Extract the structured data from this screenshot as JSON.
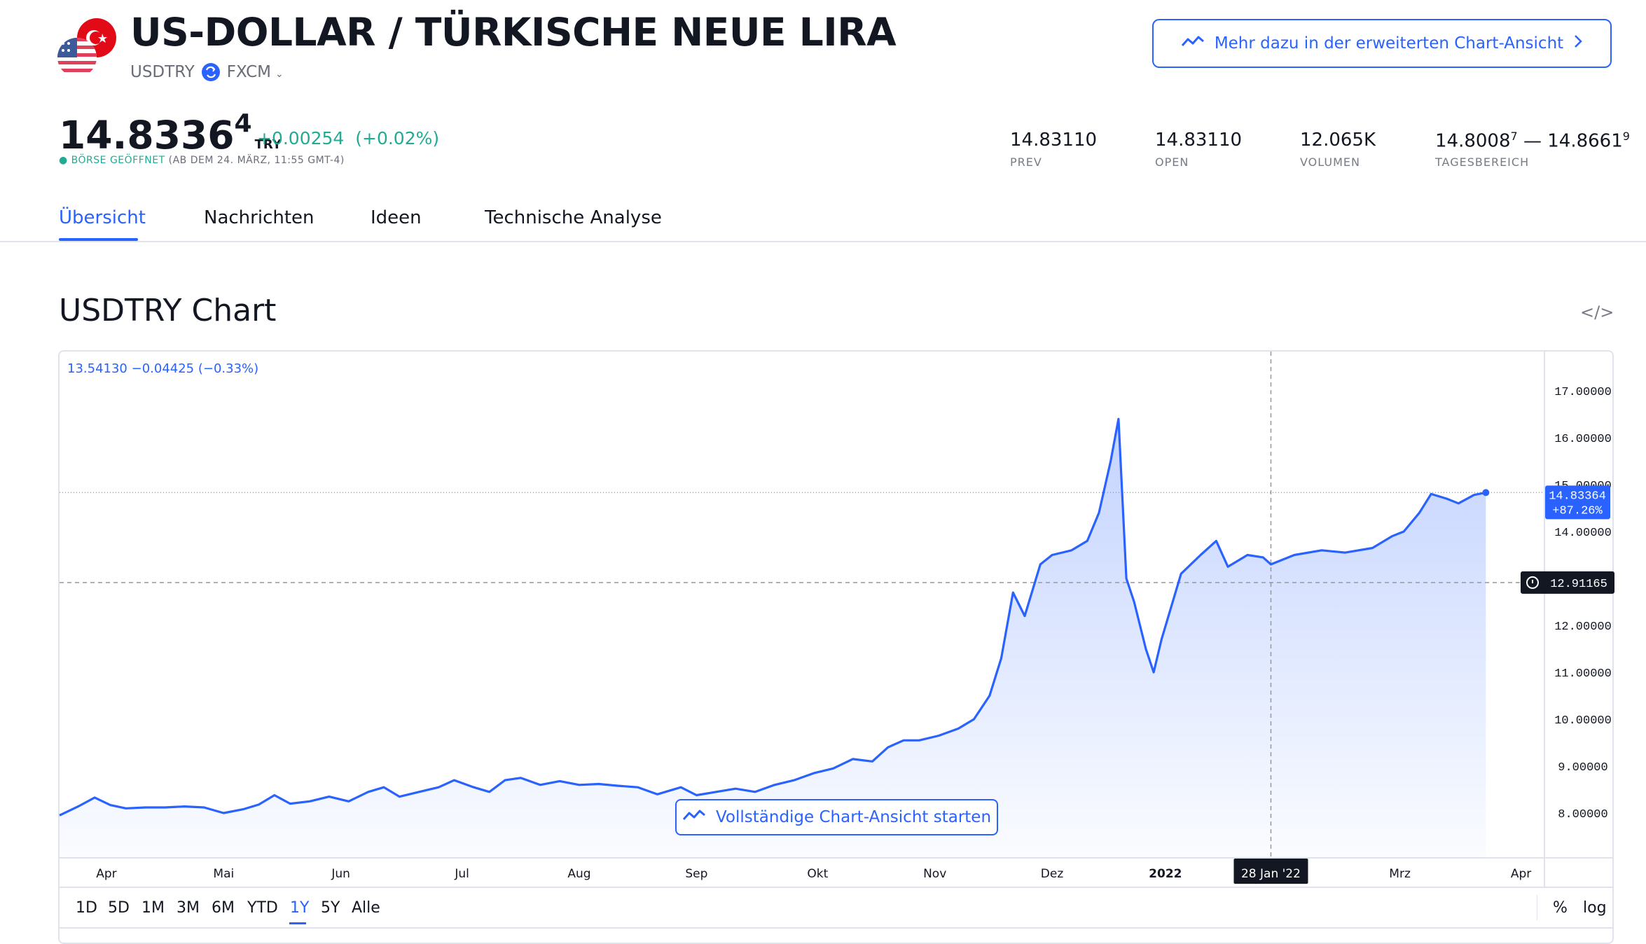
{
  "header": {
    "title": "US-DOLLAR / TÜRKISCHE NEUE LIRA",
    "symbol": "USDTRY",
    "exchange": "FXCM",
    "advanced_button": "Mehr dazu in der erweiterten Chart-Ansicht"
  },
  "quote": {
    "price_main": "14.8336",
    "price_sup": "4",
    "currency": "TRY",
    "change": "+0.00254",
    "change_pct": "(+0.02%)",
    "status_label": "BÖRSE GEÖFFNET",
    "status_time": "(AB DEM 24. MÄRZ, 11:55 GMT-4)"
  },
  "stats": [
    {
      "value": "14.83110",
      "label": "PREV"
    },
    {
      "value": "14.83110",
      "label": "OPEN"
    },
    {
      "value": "12.065K",
      "label": "VOLUMEN"
    }
  ],
  "day_range": {
    "low": "14.8008",
    "low_sup": "7",
    "sep": " — ",
    "high": "14.8661",
    "high_sup": "9",
    "label": "TAGESBEREICH"
  },
  "tabs": [
    "Übersicht",
    "Nachrichten",
    "Ideen",
    "Technische Analyse"
  ],
  "chart_section": {
    "title": "USDTRY Chart",
    "legend": "13.54130  −0.04425 (−0.33%)",
    "full_view_button": "Vollständige Chart-Ansicht starten",
    "last_price_label": "14.83364",
    "last_pct_label": "+87.26%",
    "crosshair_price_label": "12.91165",
    "crosshair_date_label": "28 Jan '22",
    "ranges": [
      "1D",
      "5D",
      "1M",
      "3M",
      "6M",
      "YTD",
      "1Y",
      "5Y",
      "Alle"
    ],
    "active_range": "1Y",
    "options": [
      "%",
      "log"
    ]
  },
  "colors": {
    "accent": "#2962ff",
    "positive": "#22ab94",
    "text": "#131722",
    "muted": "#787b86"
  },
  "chart_data": {
    "type": "area",
    "y_ticks": [
      "17.00000",
      "16.00000",
      "15.00000",
      "14.00000",
      "12.00000",
      "11.00000",
      "10.00000",
      "9.00000",
      "8.00000"
    ],
    "ylim": [
      7.0,
      17.9
    ],
    "x_ticks": [
      "Apr",
      "Mai",
      "Jun",
      "Jul",
      "Aug",
      "Sep",
      "Okt",
      "Nov",
      "Dez",
      "2022",
      "Mrz",
      "Apr"
    ],
    "x_range": [
      "2021-03-24",
      "2022-04-08"
    ],
    "grid": false,
    "series": [
      {
        "values": [
          [
            "2021-03-24",
            7.95
          ],
          [
            "2021-03-29",
            8.15
          ],
          [
            "2021-04-02",
            8.33
          ],
          [
            "2021-04-06",
            8.17
          ],
          [
            "2021-04-10",
            8.1
          ],
          [
            "2021-04-15",
            8.12
          ],
          [
            "2021-04-20",
            8.12
          ],
          [
            "2021-04-25",
            8.14
          ],
          [
            "2021-04-30",
            8.12
          ],
          [
            "2021-05-05",
            8.0
          ],
          [
            "2021-05-10",
            8.08
          ],
          [
            "2021-05-14",
            8.18
          ],
          [
            "2021-05-18",
            8.38
          ],
          [
            "2021-05-22",
            8.2
          ],
          [
            "2021-05-27",
            8.25
          ],
          [
            "2021-06-01",
            8.35
          ],
          [
            "2021-06-06",
            8.25
          ],
          [
            "2021-06-11",
            8.45
          ],
          [
            "2021-06-15",
            8.55
          ],
          [
            "2021-06-19",
            8.35
          ],
          [
            "2021-06-24",
            8.45
          ],
          [
            "2021-06-29",
            8.55
          ],
          [
            "2021-07-03",
            8.7
          ],
          [
            "2021-07-08",
            8.55
          ],
          [
            "2021-07-12",
            8.45
          ],
          [
            "2021-07-16",
            8.7
          ],
          [
            "2021-07-20",
            8.75
          ],
          [
            "2021-07-25",
            8.6
          ],
          [
            "2021-07-30",
            8.68
          ],
          [
            "2021-08-04",
            8.6
          ],
          [
            "2021-08-09",
            8.62
          ],
          [
            "2021-08-14",
            8.58
          ],
          [
            "2021-08-19",
            8.55
          ],
          [
            "2021-08-24",
            8.4
          ],
          [
            "2021-08-30",
            8.55
          ],
          [
            "2021-09-03",
            8.38
          ],
          [
            "2021-09-08",
            8.45
          ],
          [
            "2021-09-13",
            8.52
          ],
          [
            "2021-09-18",
            8.45
          ],
          [
            "2021-09-23",
            8.6
          ],
          [
            "2021-09-28",
            8.7
          ],
          [
            "2021-10-03",
            8.85
          ],
          [
            "2021-10-08",
            8.95
          ],
          [
            "2021-10-13",
            9.15
          ],
          [
            "2021-10-18",
            9.1
          ],
          [
            "2021-10-22",
            9.4
          ],
          [
            "2021-10-26",
            9.55
          ],
          [
            "2021-10-30",
            9.55
          ],
          [
            "2021-11-04",
            9.65
          ],
          [
            "2021-11-09",
            9.8
          ],
          [
            "2021-11-13",
            10.0
          ],
          [
            "2021-11-17",
            10.5
          ],
          [
            "2021-11-20",
            11.3
          ],
          [
            "2021-11-23",
            12.7
          ],
          [
            "2021-11-26",
            12.2
          ],
          [
            "2021-11-30",
            13.3
          ],
          [
            "2021-12-03",
            13.5
          ],
          [
            "2021-12-08",
            13.6
          ],
          [
            "2021-12-12",
            13.8
          ],
          [
            "2021-12-15",
            14.4
          ],
          [
            "2021-12-18",
            15.5
          ],
          [
            "2021-12-20",
            16.4
          ],
          [
            "2021-12-22",
            13.0
          ],
          [
            "2021-12-24",
            12.5
          ],
          [
            "2021-12-27",
            11.5
          ],
          [
            "2021-12-29",
            11.0
          ],
          [
            "2021-12-31",
            11.7
          ],
          [
            "2022-01-05",
            13.1
          ],
          [
            "2022-01-10",
            13.5
          ],
          [
            "2022-01-14",
            13.8
          ],
          [
            "2022-01-17",
            13.25
          ],
          [
            "2022-01-22",
            13.5
          ],
          [
            "2022-01-26",
            13.45
          ],
          [
            "2022-01-28",
            13.3
          ],
          [
            "2022-02-03",
            13.5
          ],
          [
            "2022-02-10",
            13.6
          ],
          [
            "2022-02-16",
            13.55
          ],
          [
            "2022-02-23",
            13.65
          ],
          [
            "2022-02-28",
            13.9
          ],
          [
            "2022-03-03",
            14.0
          ],
          [
            "2022-03-07",
            14.4
          ],
          [
            "2022-03-10",
            14.8
          ],
          [
            "2022-03-14",
            14.7
          ],
          [
            "2022-03-17",
            14.6
          ],
          [
            "2022-03-21",
            14.78
          ],
          [
            "2022-03-24",
            14.83
          ]
        ]
      }
    ]
  }
}
